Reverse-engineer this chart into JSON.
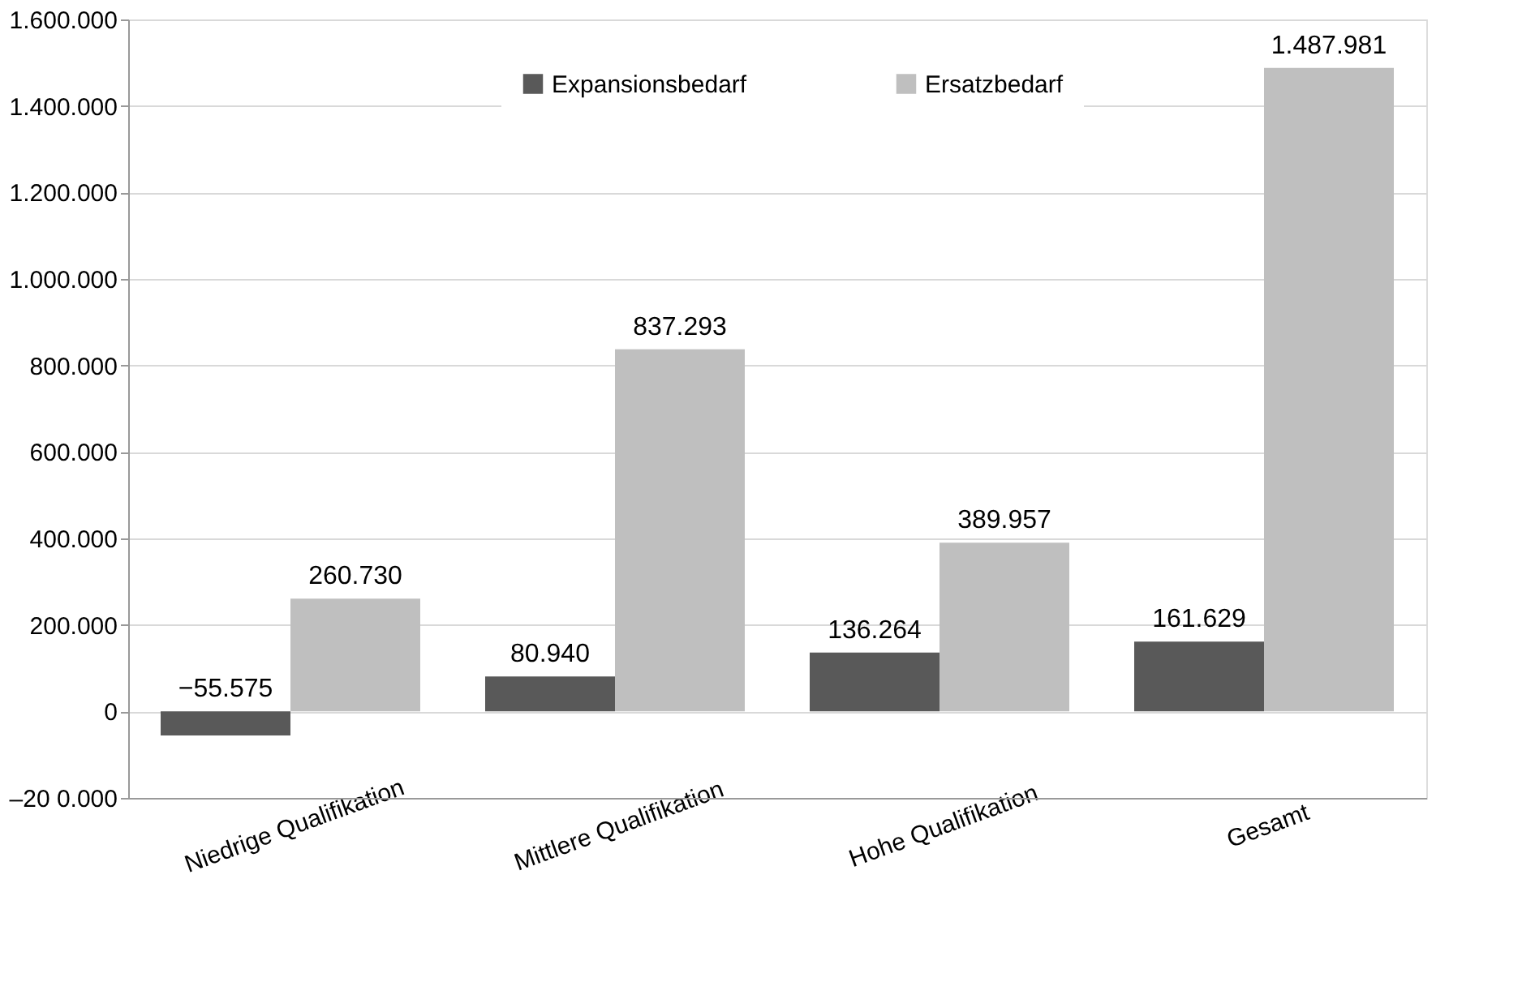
{
  "chart_data": {
    "type": "bar",
    "categories": [
      "Niedrige Qualifikation",
      "Mittlere Qualifikation",
      "Hohe Qualifikation",
      "Gesamt"
    ],
    "series": [
      {
        "name": "Expansionsbedarf",
        "color": "#595959",
        "values": [
          -55575,
          80940,
          136264,
          161629
        ],
        "value_labels": [
          "−55.575",
          "80.940",
          "136.264",
          "161.629"
        ]
      },
      {
        "name": "Ersatzbedarf",
        "color": "#bfbfbf",
        "values": [
          260730,
          837293,
          389957,
          1487981
        ],
        "value_labels": [
          "260.730",
          "837.293",
          "389.957",
          "1.487.981"
        ]
      }
    ],
    "ylim": [
      -200000,
      1600000
    ],
    "yticks": [
      {
        "value": -200000,
        "label": "–20 0.000"
      },
      {
        "value": 200000,
        "label": "200.000"
      },
      0,
      {
        "value": 400000,
        "label": "400.000"
      },
      {
        "value": 600000,
        "label": "600.000"
      },
      {
        "value": 800000,
        "label": "800.000"
      },
      {
        "value": 1000000,
        "label": "1.000.000"
      },
      {
        "value": 1200000,
        "label": "1.200.000"
      },
      {
        "value": 1400000,
        "label": "1.400.000"
      },
      {
        "value": 1600000,
        "label": "1.600.000"
      }
    ],
    "grid": "y",
    "legend": "top"
  }
}
